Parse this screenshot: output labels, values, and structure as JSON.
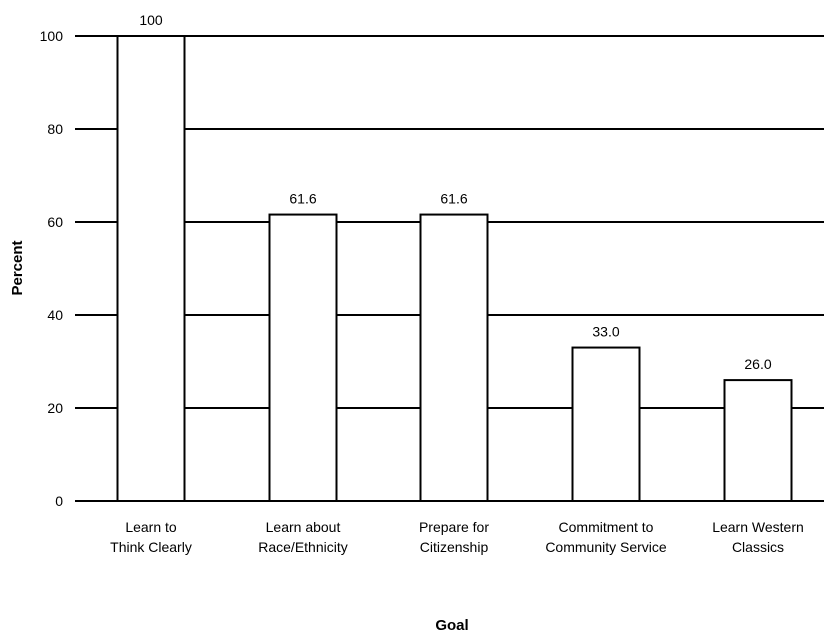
{
  "chart_data": {
    "type": "bar",
    "categories": [
      [
        "Learn to",
        "Think Clearly"
      ],
      [
        "Learn about",
        "Race/Ethnicity"
      ],
      [
        "Prepare for",
        "Citizenship"
      ],
      [
        "Commitment to",
        "Community Service"
      ],
      [
        "Learn Western",
        "Classics"
      ]
    ],
    "values": [
      100,
      61.6,
      61.6,
      33.0,
      26.0
    ],
    "value_labels": [
      "100",
      "61.6",
      "61.6",
      "33.0",
      "26.0"
    ],
    "xlabel": "Goal",
    "ylabel": "Percent",
    "ylim": [
      0,
      100
    ],
    "yticks": [
      0,
      20,
      40,
      60,
      80,
      100
    ],
    "grid": true,
    "legend": "none",
    "colors": {
      "bar_fill": "#ffffff",
      "bar_stroke": "#000000",
      "grid": "#000000"
    }
  }
}
